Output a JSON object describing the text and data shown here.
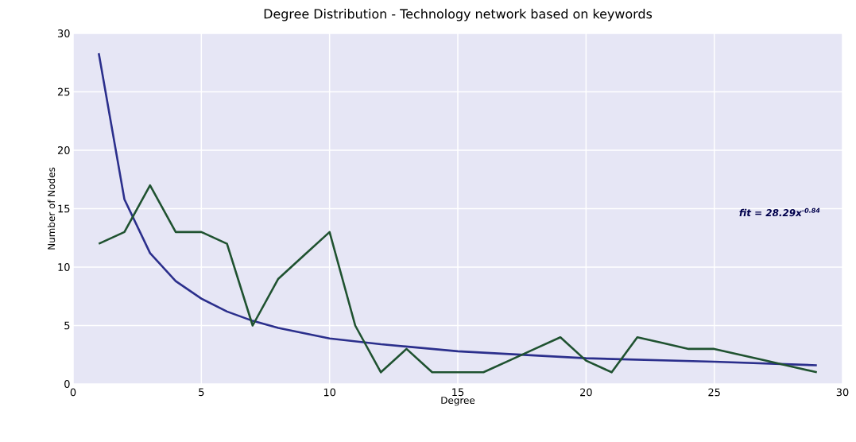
{
  "chart_data": {
    "type": "line",
    "title": "Degree Distribution - Technology network based on keywords",
    "xlabel": "Degree",
    "ylabel": "Number of Nodes",
    "series": [
      {
        "color": "#2b2f8c",
        "x": [
          1,
          2,
          3,
          4,
          5,
          6,
          7,
          8,
          10,
          12,
          15,
          20,
          25,
          29
        ],
        "values": [
          28.3,
          15.8,
          11.2,
          8.8,
          7.3,
          6.2,
          5.4,
          4.8,
          3.9,
          3.4,
          2.8,
          2.2,
          1.9,
          1.6
        ]
      },
      {
        "color": "#1f5230",
        "x": [
          1,
          2,
          3,
          4,
          5,
          6,
          7,
          8,
          9,
          10,
          11,
          12,
          13,
          14,
          15,
          16,
          17,
          18,
          19,
          20,
          21,
          22,
          23,
          24,
          25,
          26,
          27,
          28,
          29
        ],
        "values": [
          12,
          13,
          17,
          13,
          13,
          12,
          5,
          9,
          11,
          13,
          5,
          1,
          3,
          1,
          1,
          1,
          2,
          3,
          4,
          2,
          1,
          4,
          3.5,
          3,
          3,
          2.5,
          2,
          1.5,
          1
        ]
      }
    ],
    "annotations": [
      "fit = 28.29x$^{-0.84}$"
    ],
    "xlim": [
      0,
      30
    ],
    "ylim": [
      0,
      30
    ],
    "xticks": [
      0,
      5,
      10,
      15,
      20,
      25,
      30
    ],
    "yticks": [
      0,
      5,
      10,
      15,
      20,
      25,
      30
    ],
    "grid": true
  }
}
